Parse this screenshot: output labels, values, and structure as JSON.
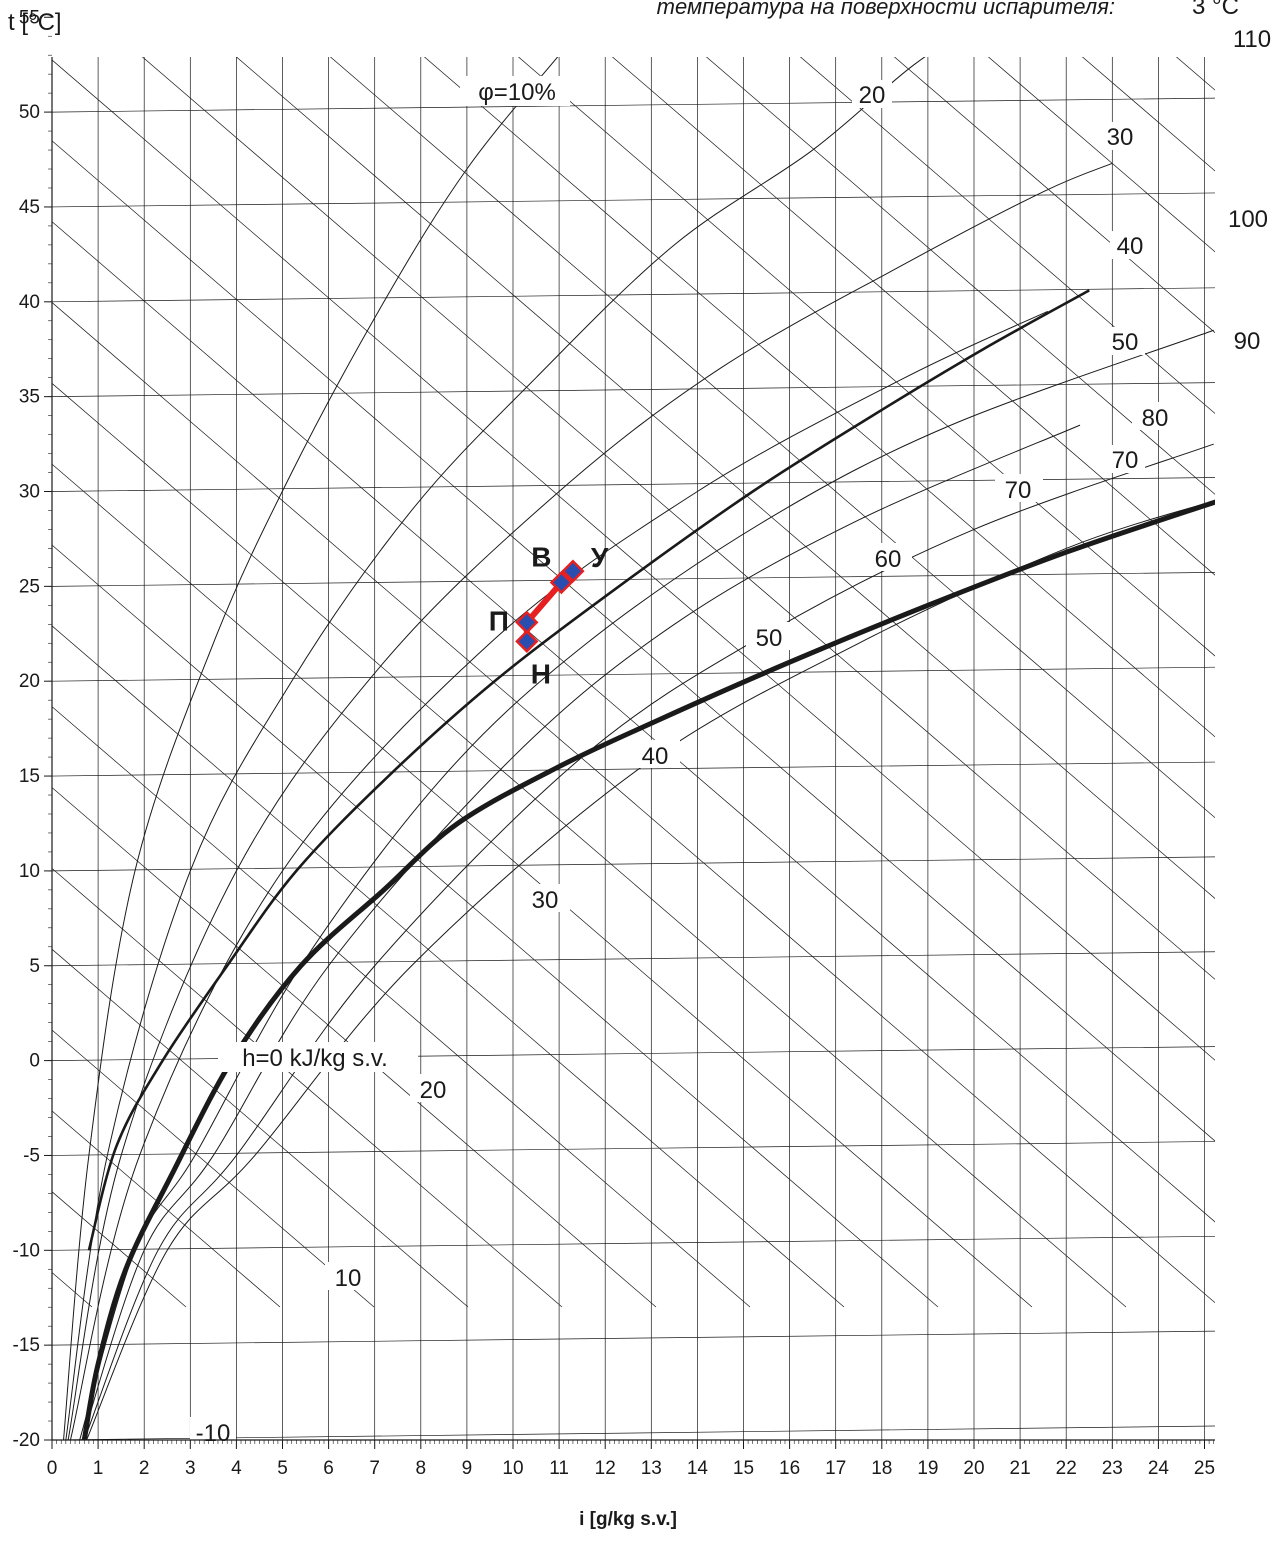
{
  "chart_data": {
    "type": "line",
    "header_text": "температура на поверхности испарителя:",
    "header_value": "3 °C",
    "ylabel": "t [°C]",
    "xlabel": "i [g/kg s.v.]",
    "xlim": [
      0,
      25.3
    ],
    "ylim": [
      -20,
      55
    ],
    "x_ticks": [
      "0",
      "1",
      "2",
      "3",
      "4",
      "5",
      "6",
      "7",
      "8",
      "9",
      "10",
      "11",
      "12",
      "13",
      "14",
      "15",
      "16",
      "17",
      "18",
      "19",
      "20",
      "21",
      "22",
      "23",
      "24",
      "25"
    ],
    "y_ticks": [
      "-20",
      "-15",
      "-10",
      "-5",
      "0",
      "5",
      "10",
      "15",
      "20",
      "25",
      "30",
      "35",
      "40",
      "45",
      "50",
      "55"
    ],
    "rh_curves": [
      {
        "phi": 10,
        "label": "φ=10%",
        "points": [
          [
            0.25,
            -20
          ],
          [
            0.8,
            -5
          ],
          [
            1.8,
            10
          ],
          [
            3.5,
            22
          ],
          [
            5.2,
            31
          ],
          [
            7.2,
            40
          ],
          [
            9.0,
            47
          ],
          [
            11.0,
            53
          ],
          [
            11.9,
            55.5
          ]
        ]
      },
      {
        "phi": 20,
        "label": "20",
        "points": [
          [
            0.3,
            -20
          ],
          [
            1.2,
            -5
          ],
          [
            3.0,
            10
          ],
          [
            5.2,
            20
          ],
          [
            7.8,
            29
          ],
          [
            10.5,
            36
          ],
          [
            13.5,
            43
          ],
          [
            16.5,
            48
          ],
          [
            18.7,
            52.5
          ],
          [
            20.6,
            55.5
          ]
        ]
      },
      {
        "phi": 30,
        "label": "30",
        "points": [
          [
            0.35,
            -20
          ],
          [
            1.5,
            -5
          ],
          [
            4.0,
            10
          ],
          [
            7.2,
            21
          ],
          [
            11.0,
            30
          ],
          [
            14.5,
            36.5
          ],
          [
            18.5,
            42
          ],
          [
            21.5,
            45.8
          ],
          [
            23.0,
            47.3
          ]
        ]
      },
      {
        "phi": 40,
        "label": "40",
        "points": [
          [
            0.4,
            -20
          ],
          [
            1.9,
            -5
          ],
          [
            5.0,
            10
          ],
          [
            9.5,
            22
          ],
          [
            14.0,
            30
          ],
          [
            18.5,
            36
          ],
          [
            21.6,
            39.5
          ]
        ]
      },
      {
        "phi": 50,
        "label": "50",
        "points": [
          [
            0.8,
            -10
          ],
          [
            1.4,
            -4.5
          ],
          [
            2.4,
            0
          ],
          [
            3.8,
            5
          ],
          [
            5.3,
            10
          ],
          [
            7.3,
            15
          ],
          [
            9.6,
            20
          ],
          [
            12.3,
            25
          ],
          [
            15.2,
            30
          ],
          [
            17.8,
            34
          ],
          [
            20.2,
            37.5
          ],
          [
            22.5,
            40.6
          ]
        ]
      },
      {
        "phi": 60,
        "label": "",
        "points": [
          [
            0.6,
            -20
          ],
          [
            1.8,
            -10
          ],
          [
            3.1,
            -5
          ],
          [
            5.4,
            5
          ],
          [
            8.5,
            15
          ],
          [
            11.6,
            22
          ],
          [
            15.5,
            28.5
          ],
          [
            19.5,
            33.5
          ],
          [
            25.2,
            38.5
          ]
        ]
      },
      {
        "phi": 70,
        "label": "70",
        "points": [
          [
            0.65,
            -20
          ],
          [
            2.0,
            -10
          ],
          [
            3.5,
            -5
          ],
          [
            6.0,
            5
          ],
          [
            10.0,
            16
          ],
          [
            13.5,
            23
          ],
          [
            17.5,
            28.5
          ],
          [
            22.3,
            33.5
          ]
        ]
      },
      {
        "phi": 80,
        "label": "",
        "points": [
          [
            0.7,
            -20
          ],
          [
            2.3,
            -10
          ],
          [
            4.0,
            -5
          ],
          [
            7.0,
            5
          ],
          [
            11.5,
            16
          ],
          [
            15.5,
            22.5
          ],
          [
            20.0,
            28
          ],
          [
            25.2,
            32.5
          ]
        ]
      },
      {
        "phi": 90,
        "label": "",
        "points": [
          [
            0.75,
            -20
          ],
          [
            2.5,
            -10
          ],
          [
            4.4,
            -5
          ],
          [
            7.8,
            5
          ],
          [
            12.8,
            15.5
          ],
          [
            17.5,
            22
          ],
          [
            22.0,
            27
          ],
          [
            25.2,
            29.5
          ]
        ]
      },
      {
        "phi": 100,
        "label": "",
        "points": [
          [
            0.7,
            -20
          ],
          [
            1.0,
            -16
          ],
          [
            1.6,
            -11
          ],
          [
            2.6,
            -6
          ],
          [
            3.9,
            0
          ],
          [
            5.4,
            5
          ],
          [
            7.2,
            9
          ],
          [
            8.8,
            12.5
          ],
          [
            11.0,
            15.5
          ],
          [
            13.2,
            18
          ],
          [
            16.0,
            21
          ],
          [
            19.0,
            24
          ],
          [
            22.0,
            26.8
          ],
          [
            25.3,
            29.5
          ]
        ]
      }
    ],
    "rh_labels_right": [
      "20",
      "30",
      "40",
      "50",
      "70"
    ],
    "enthalpy_labels": [
      "h=0 kJ/kg s.v.",
      "-10",
      "10",
      "20",
      "30",
      "40",
      "50",
      "60",
      "70",
      "80",
      "90",
      "100",
      "110"
    ],
    "points": [
      {
        "name": "Н",
        "x": 10.3,
        "y": 22.1
      },
      {
        "name": "П",
        "x": 10.3,
        "y": 23.1
      },
      {
        "name": "В",
        "x": 11.05,
        "y": 25.2
      },
      {
        "name": "У",
        "x": 11.3,
        "y": 25.8
      }
    ],
    "colors": {
      "process_line": "#e62020",
      "point_fill": "#2a4db0",
      "point_edge": "#e62020",
      "grid": "#1a1a1a"
    }
  }
}
